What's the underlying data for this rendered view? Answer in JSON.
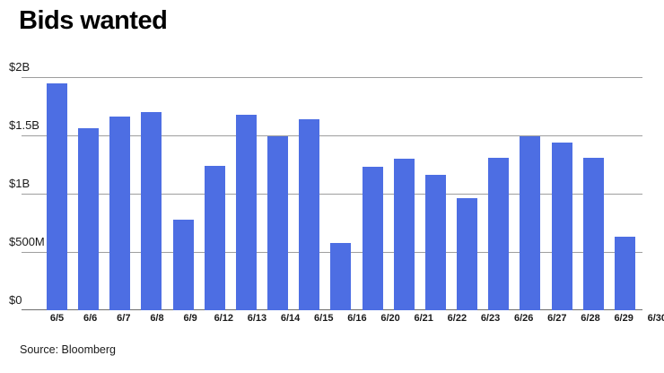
{
  "title": "Bids wanted",
  "source": "Source: Bloomberg",
  "colors": {
    "bar": "#4D6EE3",
    "gridline": "#9E9E9E",
    "axis": "#6E6E6E",
    "text": "#1A1A1A"
  },
  "chart_data": {
    "type": "bar",
    "title": "Bids wanted",
    "categories": [
      "6/5",
      "6/6",
      "6/7",
      "6/8",
      "6/9",
      "6/12",
      "6/13",
      "6/14",
      "6/15",
      "6/16",
      "6/20",
      "6/21",
      "6/22",
      "6/23",
      "6/26",
      "6/27",
      "6/28",
      "6/29",
      "6/30"
    ],
    "values": [
      1.95,
      1.56,
      1.66,
      1.7,
      0.78,
      1.24,
      1.68,
      1.49,
      1.64,
      0.58,
      1.23,
      1.3,
      1.16,
      0.96,
      1.31,
      1.49,
      1.44,
      1.31,
      0.63
    ],
    "unit": "billions USD",
    "xlabel": "",
    "ylabel": "",
    "ylim": [
      0,
      2
    ],
    "yticks": [
      {
        "label": "$2B",
        "value": 2
      },
      {
        "label": "$1.5B",
        "value": 1.5
      },
      {
        "label": "$1B",
        "value": 1
      },
      {
        "label": "$500M",
        "value": 0.5
      },
      {
        "label": "$0",
        "value": 0
      }
    ],
    "grid": true,
    "legend": false,
    "source_note": "Source: Bloomberg"
  }
}
